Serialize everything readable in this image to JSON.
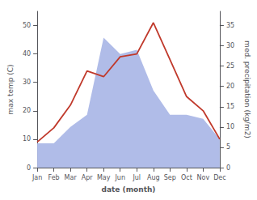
{
  "chart_data": {
    "type": "line",
    "xlabel": "date (month)",
    "ylabel": "max temp (C)",
    "y2label": "med. precipitation (kg/m2)",
    "categories": [
      "Jan",
      "Feb",
      "Mar",
      "Apr",
      "May",
      "Jun",
      "Jul",
      "Aug",
      "Sep",
      "Oct",
      "Nov",
      "Dec"
    ],
    "series": [
      {
        "type": "area",
        "axis": "y2",
        "color": "#b0bce8",
        "values": [
          6,
          6,
          10,
          13,
          32,
          28,
          29,
          19,
          13,
          13,
          12,
          7
        ]
      },
      {
        "type": "line",
        "color": "#c0392b",
        "values": [
          9,
          14,
          22,
          34,
          32,
          39,
          40,
          51,
          38,
          25,
          20,
          10
        ]
      }
    ],
    "ylim": [
      0,
      55
    ],
    "yticks": [
      0,
      10,
      20,
      30,
      40,
      50
    ],
    "y2lim": [
      0,
      38.5
    ],
    "y2ticks": [
      0,
      5,
      10,
      15,
      20,
      25,
      30,
      35
    ],
    "grid": false
  }
}
